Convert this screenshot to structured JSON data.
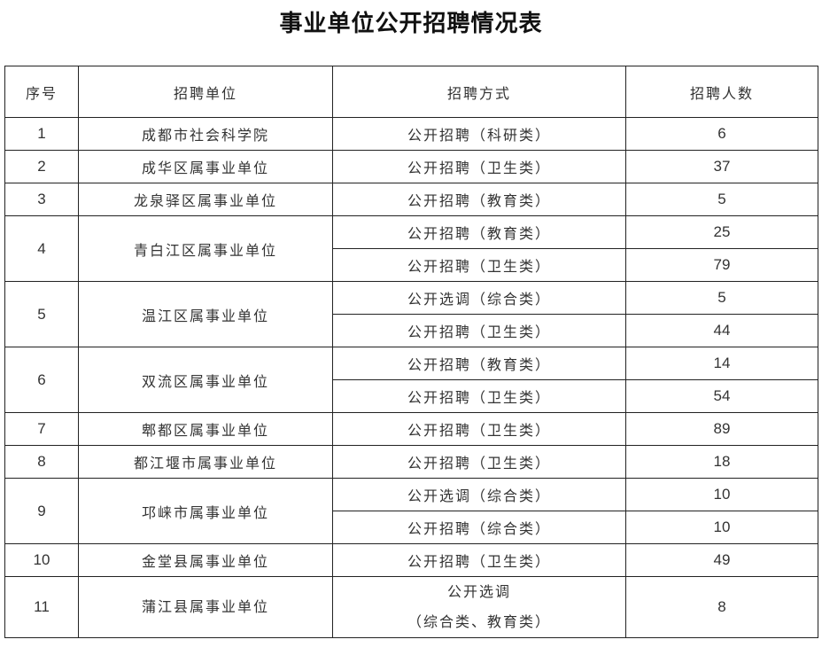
{
  "title": "事业单位公开招聘情况表",
  "headers": [
    "序号",
    "招聘单位",
    "招聘方式",
    "招聘人数"
  ],
  "rows": [
    {
      "no": "1",
      "unit": "成都市社会科学院",
      "items": [
        {
          "method": "公开招聘（科研类）",
          "count": "6"
        }
      ]
    },
    {
      "no": "2",
      "unit": "成华区属事业单位",
      "items": [
        {
          "method": "公开招聘（卫生类）",
          "count": "37"
        }
      ]
    },
    {
      "no": "3",
      "unit": "龙泉驿区属事业单位",
      "items": [
        {
          "method": "公开招聘（教育类）",
          "count": "5"
        }
      ]
    },
    {
      "no": "4",
      "unit": "青白江区属事业单位",
      "items": [
        {
          "method": "公开招聘（教育类）",
          "count": "25"
        },
        {
          "method": "公开招聘（卫生类）",
          "count": "79"
        }
      ]
    },
    {
      "no": "5",
      "unit": "温江区属事业单位",
      "items": [
        {
          "method": "公开选调（综合类）",
          "count": "5"
        },
        {
          "method": "公开招聘（卫生类）",
          "count": "44"
        }
      ]
    },
    {
      "no": "6",
      "unit": "双流区属事业单位",
      "items": [
        {
          "method": "公开招聘（教育类）",
          "count": "14"
        },
        {
          "method": "公开招聘（卫生类）",
          "count": "54"
        }
      ]
    },
    {
      "no": "7",
      "unit": "郫都区属事业单位",
      "items": [
        {
          "method": "公开招聘（卫生类）",
          "count": "89"
        }
      ]
    },
    {
      "no": "8",
      "unit": "都江堰市属事业单位",
      "items": [
        {
          "method": "公开招聘（卫生类）",
          "count": "18"
        }
      ]
    },
    {
      "no": "9",
      "unit": "邛崃市属事业单位",
      "items": [
        {
          "method": "公开选调（综合类）",
          "count": "10"
        },
        {
          "method": "公开招聘（综合类）",
          "count": "10"
        }
      ]
    },
    {
      "no": "10",
      "unit": "金堂县属事业单位",
      "items": [
        {
          "method": "公开招聘（卫生类）",
          "count": "49"
        }
      ]
    },
    {
      "no": "11",
      "unit": "蒲江县属事业单位",
      "items": [
        {
          "method": "公开选调",
          "method2": "（综合类、教育类）",
          "count": "8"
        }
      ]
    }
  ]
}
